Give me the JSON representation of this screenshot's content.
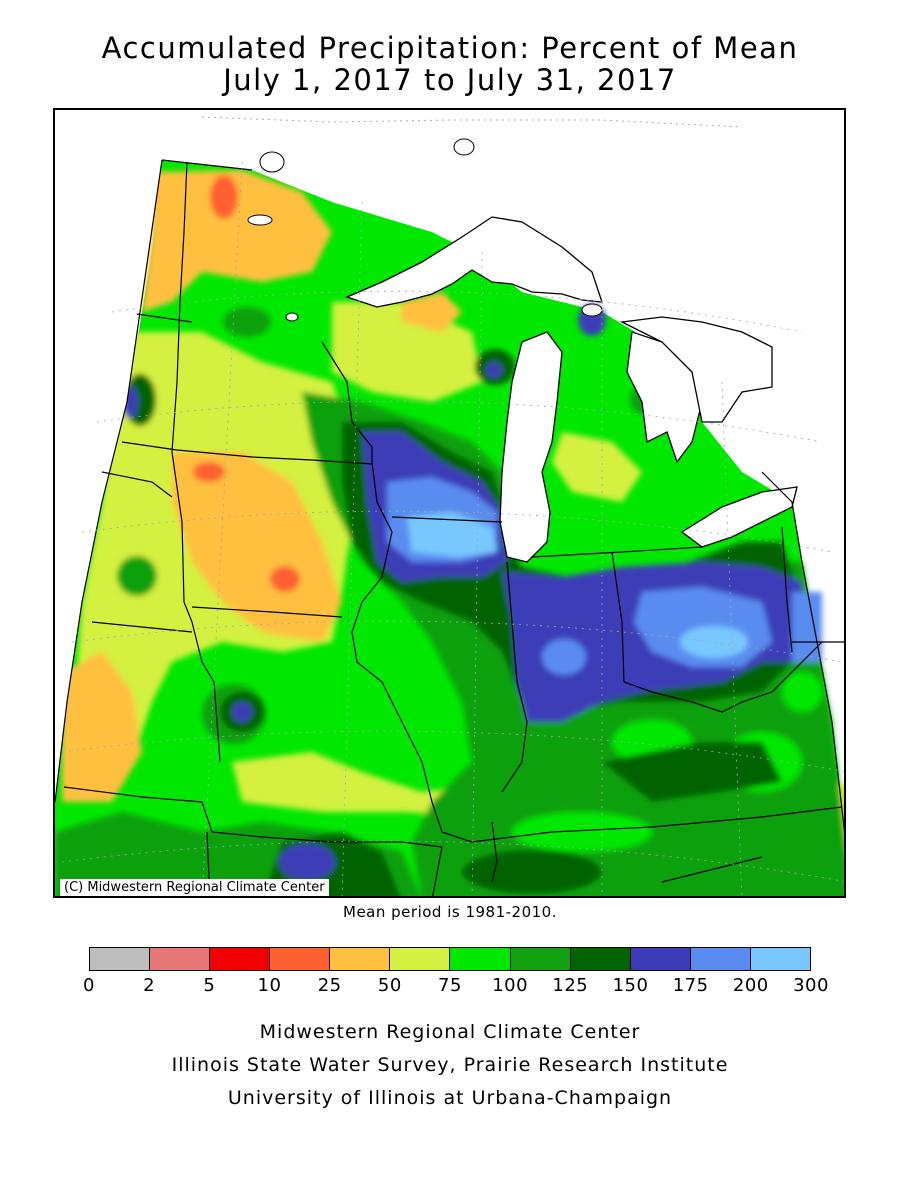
{
  "map": {
    "title": "Accumulated Precipitation: Percent of Mean",
    "subtitle": "July 1, 2017 to July 31, 2017",
    "copyright": "(C) Midwestern Regional Climate Center",
    "mean_period": "Mean period is 1981-2010.",
    "region": "Midwest US (MN, WI, MI, IA, IL, IN, OH, MO, KY)",
    "variable": "Accumulated precipitation, percent of 1981-2010 mean"
  },
  "legend": {
    "colors": [
      "#bebebe",
      "#e87878",
      "#f00000",
      "#ff6030",
      "#ffc040",
      "#d4f040",
      "#00e800",
      "#10a010",
      "#006400",
      "#3c3cb8",
      "#5a8cf0",
      "#78c8ff"
    ],
    "ticks": [
      "0",
      "2",
      "5",
      "10",
      "25",
      "50",
      "75",
      "100",
      "125",
      "150",
      "175",
      "200",
      "300"
    ]
  },
  "credits": {
    "line1": "Midwestern Regional Climate Center",
    "line2": "Illinois State Water Survey, Prairie Research Institute",
    "line3": "University of Illinois at Urbana-Champaign"
  }
}
